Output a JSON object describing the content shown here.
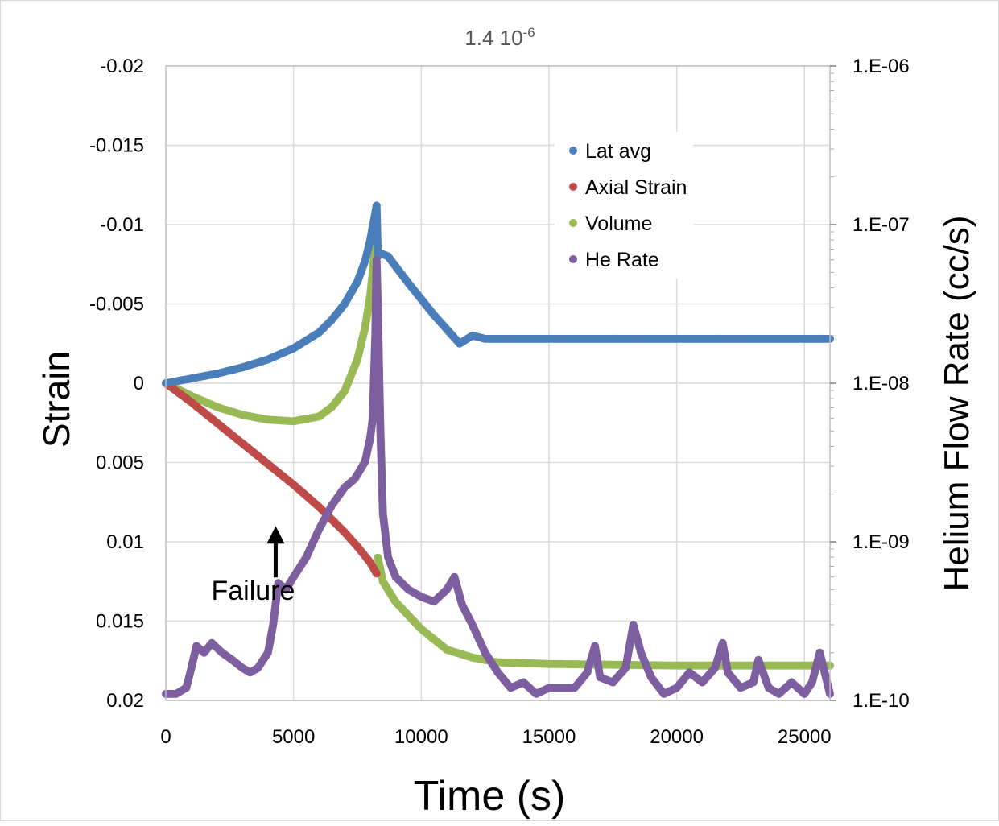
{
  "chart_data": {
    "type": "scatter",
    "title": "1.4 10",
    "title_superscript": "-6",
    "xlabel": "Time (s)",
    "ylabel": "Strain",
    "y2label": "Helium Flow Rate (cc/s)",
    "xlim": [
      0,
      26000
    ],
    "x_ticks": [
      0,
      5000,
      10000,
      15000,
      20000,
      25000
    ],
    "ylim": [
      -0.02,
      0.02
    ],
    "y_inverted": true,
    "y_ticks": [
      -0.02,
      -0.015,
      -0.01,
      -0.005,
      0,
      0.005,
      0.01,
      0.015,
      0.02
    ],
    "y_tick_labels": [
      "-0.02",
      "-0.015",
      "-0.01",
      "-0.005",
      "0",
      "0.005",
      "0.01",
      "0.015",
      "0.02"
    ],
    "y2_scale": "log",
    "y2lim": [
      1e-10,
      1e-06
    ],
    "y2_ticks": [
      1e-06,
      1e-07,
      1e-08,
      1e-09,
      1e-10
    ],
    "y2_tick_labels": [
      "1.E-06",
      "1.E-07",
      "1.E-08",
      "1.E-09",
      "1.E-10"
    ],
    "grid": true,
    "legend_position": "top-right",
    "series": [
      {
        "name": "Lat avg",
        "color": "#4a7ebb",
        "axis": "left",
        "x": [
          0,
          1000,
          2000,
          3000,
          4000,
          5000,
          6000,
          6500,
          7000,
          7500,
          7800,
          8000,
          8150,
          8250,
          8300,
          8400,
          8700,
          9500,
          10500,
          11500,
          12000,
          12500,
          15000,
          20000,
          26000
        ],
        "y": [
          0,
          -0.0003,
          -0.0006,
          -0.001,
          -0.0015,
          -0.0022,
          -0.0032,
          -0.004,
          -0.005,
          -0.0064,
          -0.0077,
          -0.009,
          -0.0103,
          -0.0112,
          -0.008,
          -0.0082,
          -0.008,
          -0.0063,
          -0.0043,
          -0.0025,
          -0.003,
          -0.0028,
          -0.0028,
          -0.0028,
          -0.0028
        ]
      },
      {
        "name": "Axial Strain",
        "color": "#be4b48",
        "axis": "left",
        "x": [
          0,
          1000,
          2000,
          3000,
          4000,
          5000,
          6000,
          7000,
          7500,
          8000,
          8250
        ],
        "y": [
          0,
          0.0012,
          0.0025,
          0.0038,
          0.0051,
          0.0064,
          0.0078,
          0.0094,
          0.0103,
          0.0113,
          0.012
        ]
      },
      {
        "name": "Volume",
        "color": "#98b954",
        "axis": "left",
        "x": [
          0,
          1000,
          2000,
          3000,
          4000,
          5000,
          6000,
          6500,
          7000,
          7500,
          7800,
          8000,
          8100,
          8200,
          8250,
          8300,
          8500,
          9000,
          10000,
          11000,
          12000,
          13000,
          15000,
          20000,
          26000
        ],
        "y": [
          0,
          0.0008,
          0.0015,
          0.002,
          0.0023,
          0.0024,
          0.0021,
          0.0015,
          0.0005,
          -0.0015,
          -0.0035,
          -0.0055,
          -0.007,
          -0.009,
          -0.0101,
          0.011,
          0.0125,
          0.0138,
          0.0155,
          0.0168,
          0.0173,
          0.0176,
          0.0177,
          0.0178,
          0.0178
        ]
      },
      {
        "name": "He Rate",
        "color": "#7d5fa0",
        "axis": "right",
        "x": [
          0,
          400,
          800,
          1000,
          1200,
          1500,
          1800,
          2200,
          2600,
          3000,
          3300,
          3600,
          4000,
          4200,
          4400,
          4700,
          5000,
          5500,
          6000,
          6500,
          7000,
          7400,
          7800,
          8000,
          8100,
          8200,
          8250,
          8300,
          8400,
          8500,
          8700,
          9000,
          9500,
          10000,
          10500,
          11000,
          11300,
          11600,
          12000,
          12500,
          13000,
          13500,
          14000,
          14500,
          15000,
          15500,
          16000,
          16500,
          16800,
          17000,
          17500,
          18000,
          18300,
          18600,
          19000,
          19500,
          20000,
          20500,
          21000,
          21500,
          21800,
          22000,
          22500,
          23000,
          23200,
          23600,
          24000,
          24500,
          25000,
          25300,
          25600,
          26000
        ],
        "y": [
          1.1e-10,
          1.1e-10,
          1.2e-10,
          1.6e-10,
          2.2e-10,
          2e-10,
          2.3e-10,
          2e-10,
          1.8e-10,
          1.6e-10,
          1.5e-10,
          1.6e-10,
          2e-10,
          3e-10,
          5.5e-10,
          5e-10,
          6e-10,
          8e-10,
          1.2e-09,
          1.7e-09,
          2.2e-09,
          2.5e-09,
          3.2e-09,
          4.5e-09,
          6e-09,
          2e-08,
          6e-08,
          3e-08,
          5e-09,
          1.5e-09,
          8e-10,
          6e-10,
          5e-10,
          4.5e-10,
          4.2e-10,
          5e-10,
          6e-10,
          4e-10,
          3e-10,
          2e-10,
          1.5e-10,
          1.2e-10,
          1.3e-10,
          1.1e-10,
          1.2e-10,
          1.2e-10,
          1.2e-10,
          1.5e-10,
          2.2e-10,
          1.4e-10,
          1.3e-10,
          1.6e-10,
          3e-10,
          2e-10,
          1.4e-10,
          1.1e-10,
          1.2e-10,
          1.5e-10,
          1.3e-10,
          1.6e-10,
          2.3e-10,
          1.5e-10,
          1.2e-10,
          1.3e-10,
          1.8e-10,
          1.2e-10,
          1.1e-10,
          1.3e-10,
          1.1e-10,
          1.3e-10,
          2e-10,
          1.1e-10
        ]
      }
    ],
    "annotations": [
      {
        "text": "Failure",
        "x": 4300,
        "y": 0.0093,
        "arrow": "up"
      }
    ]
  }
}
